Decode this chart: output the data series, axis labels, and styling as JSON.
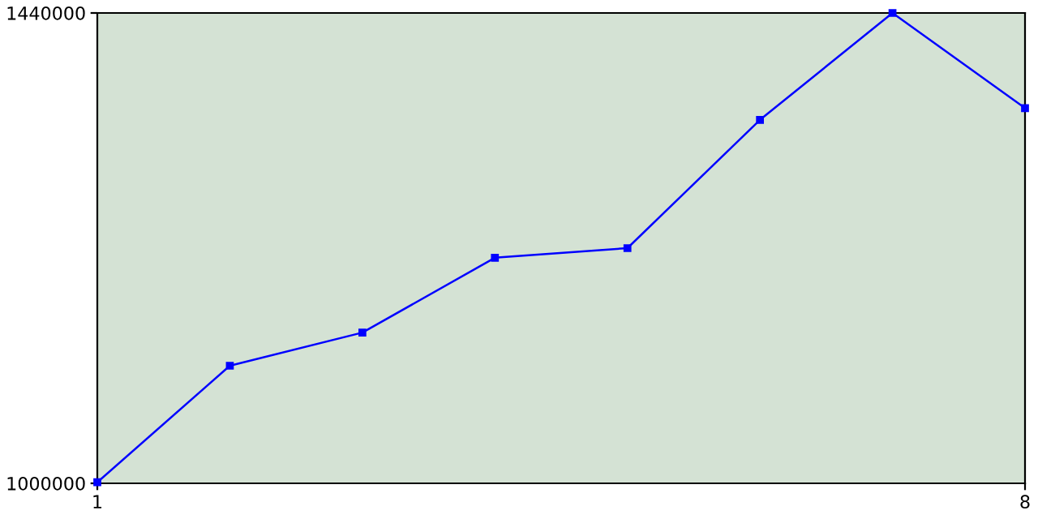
{
  "chart_data": {
    "type": "line",
    "x": [
      1,
      2,
      3,
      4,
      5,
      6,
      7,
      8
    ],
    "series": [
      {
        "color": "#0000ff",
        "values": [
          1001000,
          1110000,
          1141000,
          1211000,
          1220000,
          1340000,
          1440000,
          1351000
        ]
      }
    ],
    "xlim": [
      1,
      8
    ],
    "xticks": [
      1,
      8
    ],
    "ylim": [
      1000000,
      1440000
    ],
    "yticks": [
      1000000,
      1440000
    ],
    "grid": false,
    "marker": "square",
    "line_style": "solid"
  }
}
